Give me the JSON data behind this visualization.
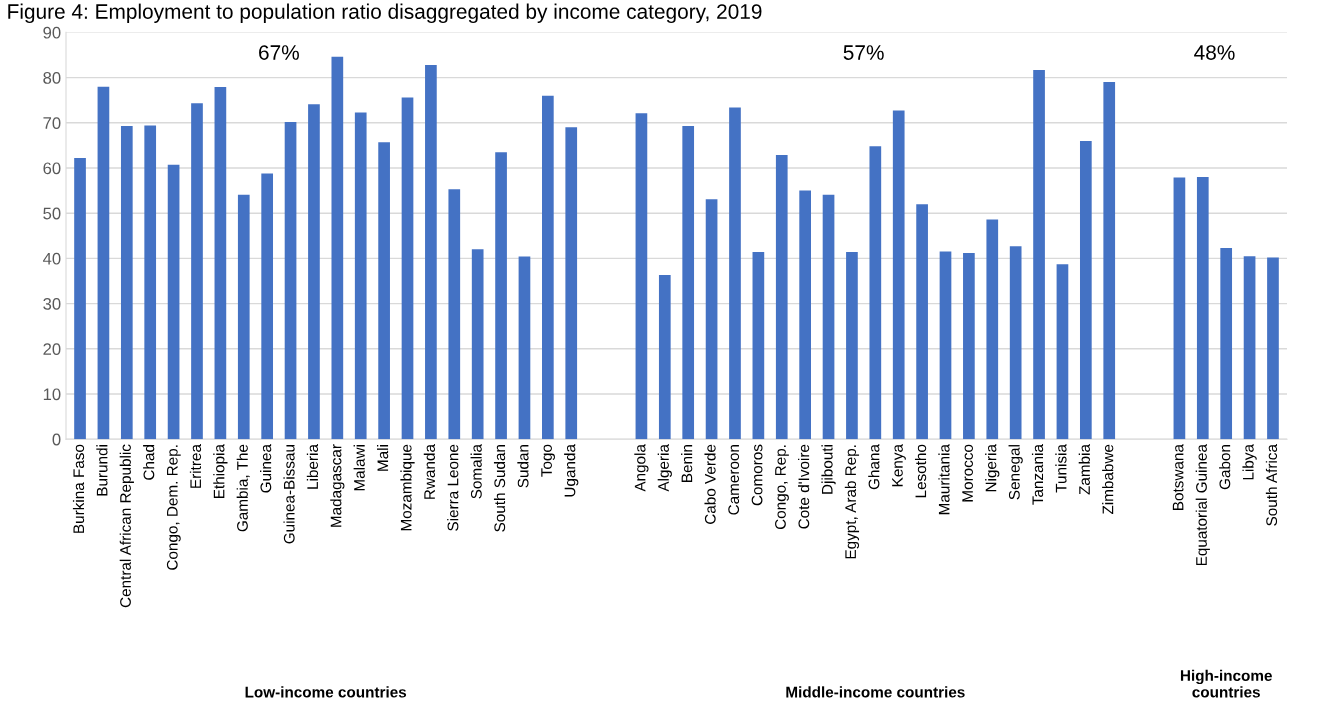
{
  "chart_data": {
    "type": "bar",
    "title": "Figure 4: Employment to population ratio disaggregated by income category, 2019",
    "categories": [
      "Burkina Faso",
      "Burundi",
      "Central African Republic",
      "Chad",
      "Congo, Dem. Rep.",
      "Eritrea",
      "Ethiopia",
      "Gambia, The",
      "Guinea",
      "Guinea-Bissau",
      "Liberia",
      "Madagascar",
      "Malawi",
      "Mali",
      "Mozambique",
      "Rwanda",
      "Sierra Leone",
      "Somalia",
      "South Sudan",
      "Sudan",
      "Togo",
      "Uganda",
      null,
      null,
      "Angola",
      "Algeria",
      "Benin",
      "Cabo Verde",
      "Cameroon",
      "Comoros",
      "Congo, Rep.",
      "Cote d'Ivoire",
      "Djibouti",
      "Egypt, Arab Rep.",
      "Ghana",
      "Kenya",
      "Lesotho",
      "Mauritania",
      "Morocco",
      "Nigeria",
      "Senegal",
      "Tanzania",
      "Tunisia",
      "Zambia",
      "Zimbabwe",
      null,
      null,
      "Botswana",
      "Equatorial Guinea",
      "Gabon",
      "Libya",
      "South Africa"
    ],
    "values": [
      62.2,
      78,
      69.3,
      69.4,
      60.7,
      74.3,
      77.9,
      54.1,
      58.8,
      70.2,
      74.1,
      84.6,
      72.3,
      65.7,
      75.6,
      82.8,
      55.3,
      42,
      63.5,
      40.4,
      76,
      69,
      null,
      null,
      72.1,
      36.3,
      69.3,
      53.1,
      73.4,
      41.4,
      62.9,
      55,
      54.1,
      41.4,
      64.8,
      72.7,
      52,
      41.5,
      41.2,
      48.6,
      42.7,
      81.7,
      38.7,
      66,
      79,
      null,
      null,
      57.9,
      58,
      42.3,
      40.5,
      40.2
    ],
    "color": "#4472c4",
    "ylim": [
      0,
      90
    ],
    "yticks": [
      0,
      10,
      20,
      30,
      40,
      50,
      60,
      70,
      80,
      90
    ],
    "grid": "y",
    "annotations": [
      "67%",
      "57%",
      "48%",
      "Low-income countries",
      "Middle-income countries",
      "High-income\ncountries"
    ]
  }
}
